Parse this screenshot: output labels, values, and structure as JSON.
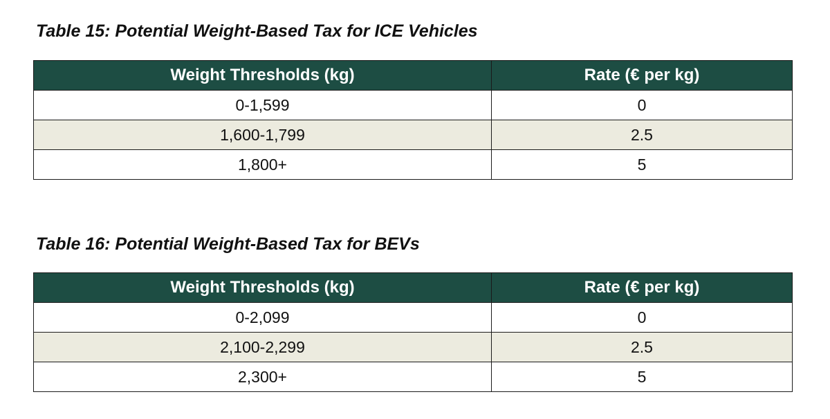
{
  "colors": {
    "header_background": "#1d4d43",
    "header_text": "#ffffff",
    "alt_row_background": "#ecebdf"
  },
  "tables": [
    {
      "caption": "Table 15: Potential Weight-Based Tax for ICE Vehicles",
      "columns": [
        "Weight Thresholds (kg)",
        "Rate (€ per kg)"
      ],
      "rows": [
        {
          "threshold": "0-1,599",
          "rate": "0"
        },
        {
          "threshold": "1,600-1,799",
          "rate": "2.5"
        },
        {
          "threshold": "1,800+",
          "rate": "5"
        }
      ]
    },
    {
      "caption": "Table 16: Potential Weight-Based Tax for BEVs",
      "columns": [
        "Weight Thresholds (kg)",
        "Rate (€ per kg)"
      ],
      "rows": [
        {
          "threshold": "0-2,099",
          "rate": "0"
        },
        {
          "threshold": "2,100-2,299",
          "rate": "2.5"
        },
        {
          "threshold": "2,300+",
          "rate": "5"
        }
      ]
    }
  ]
}
